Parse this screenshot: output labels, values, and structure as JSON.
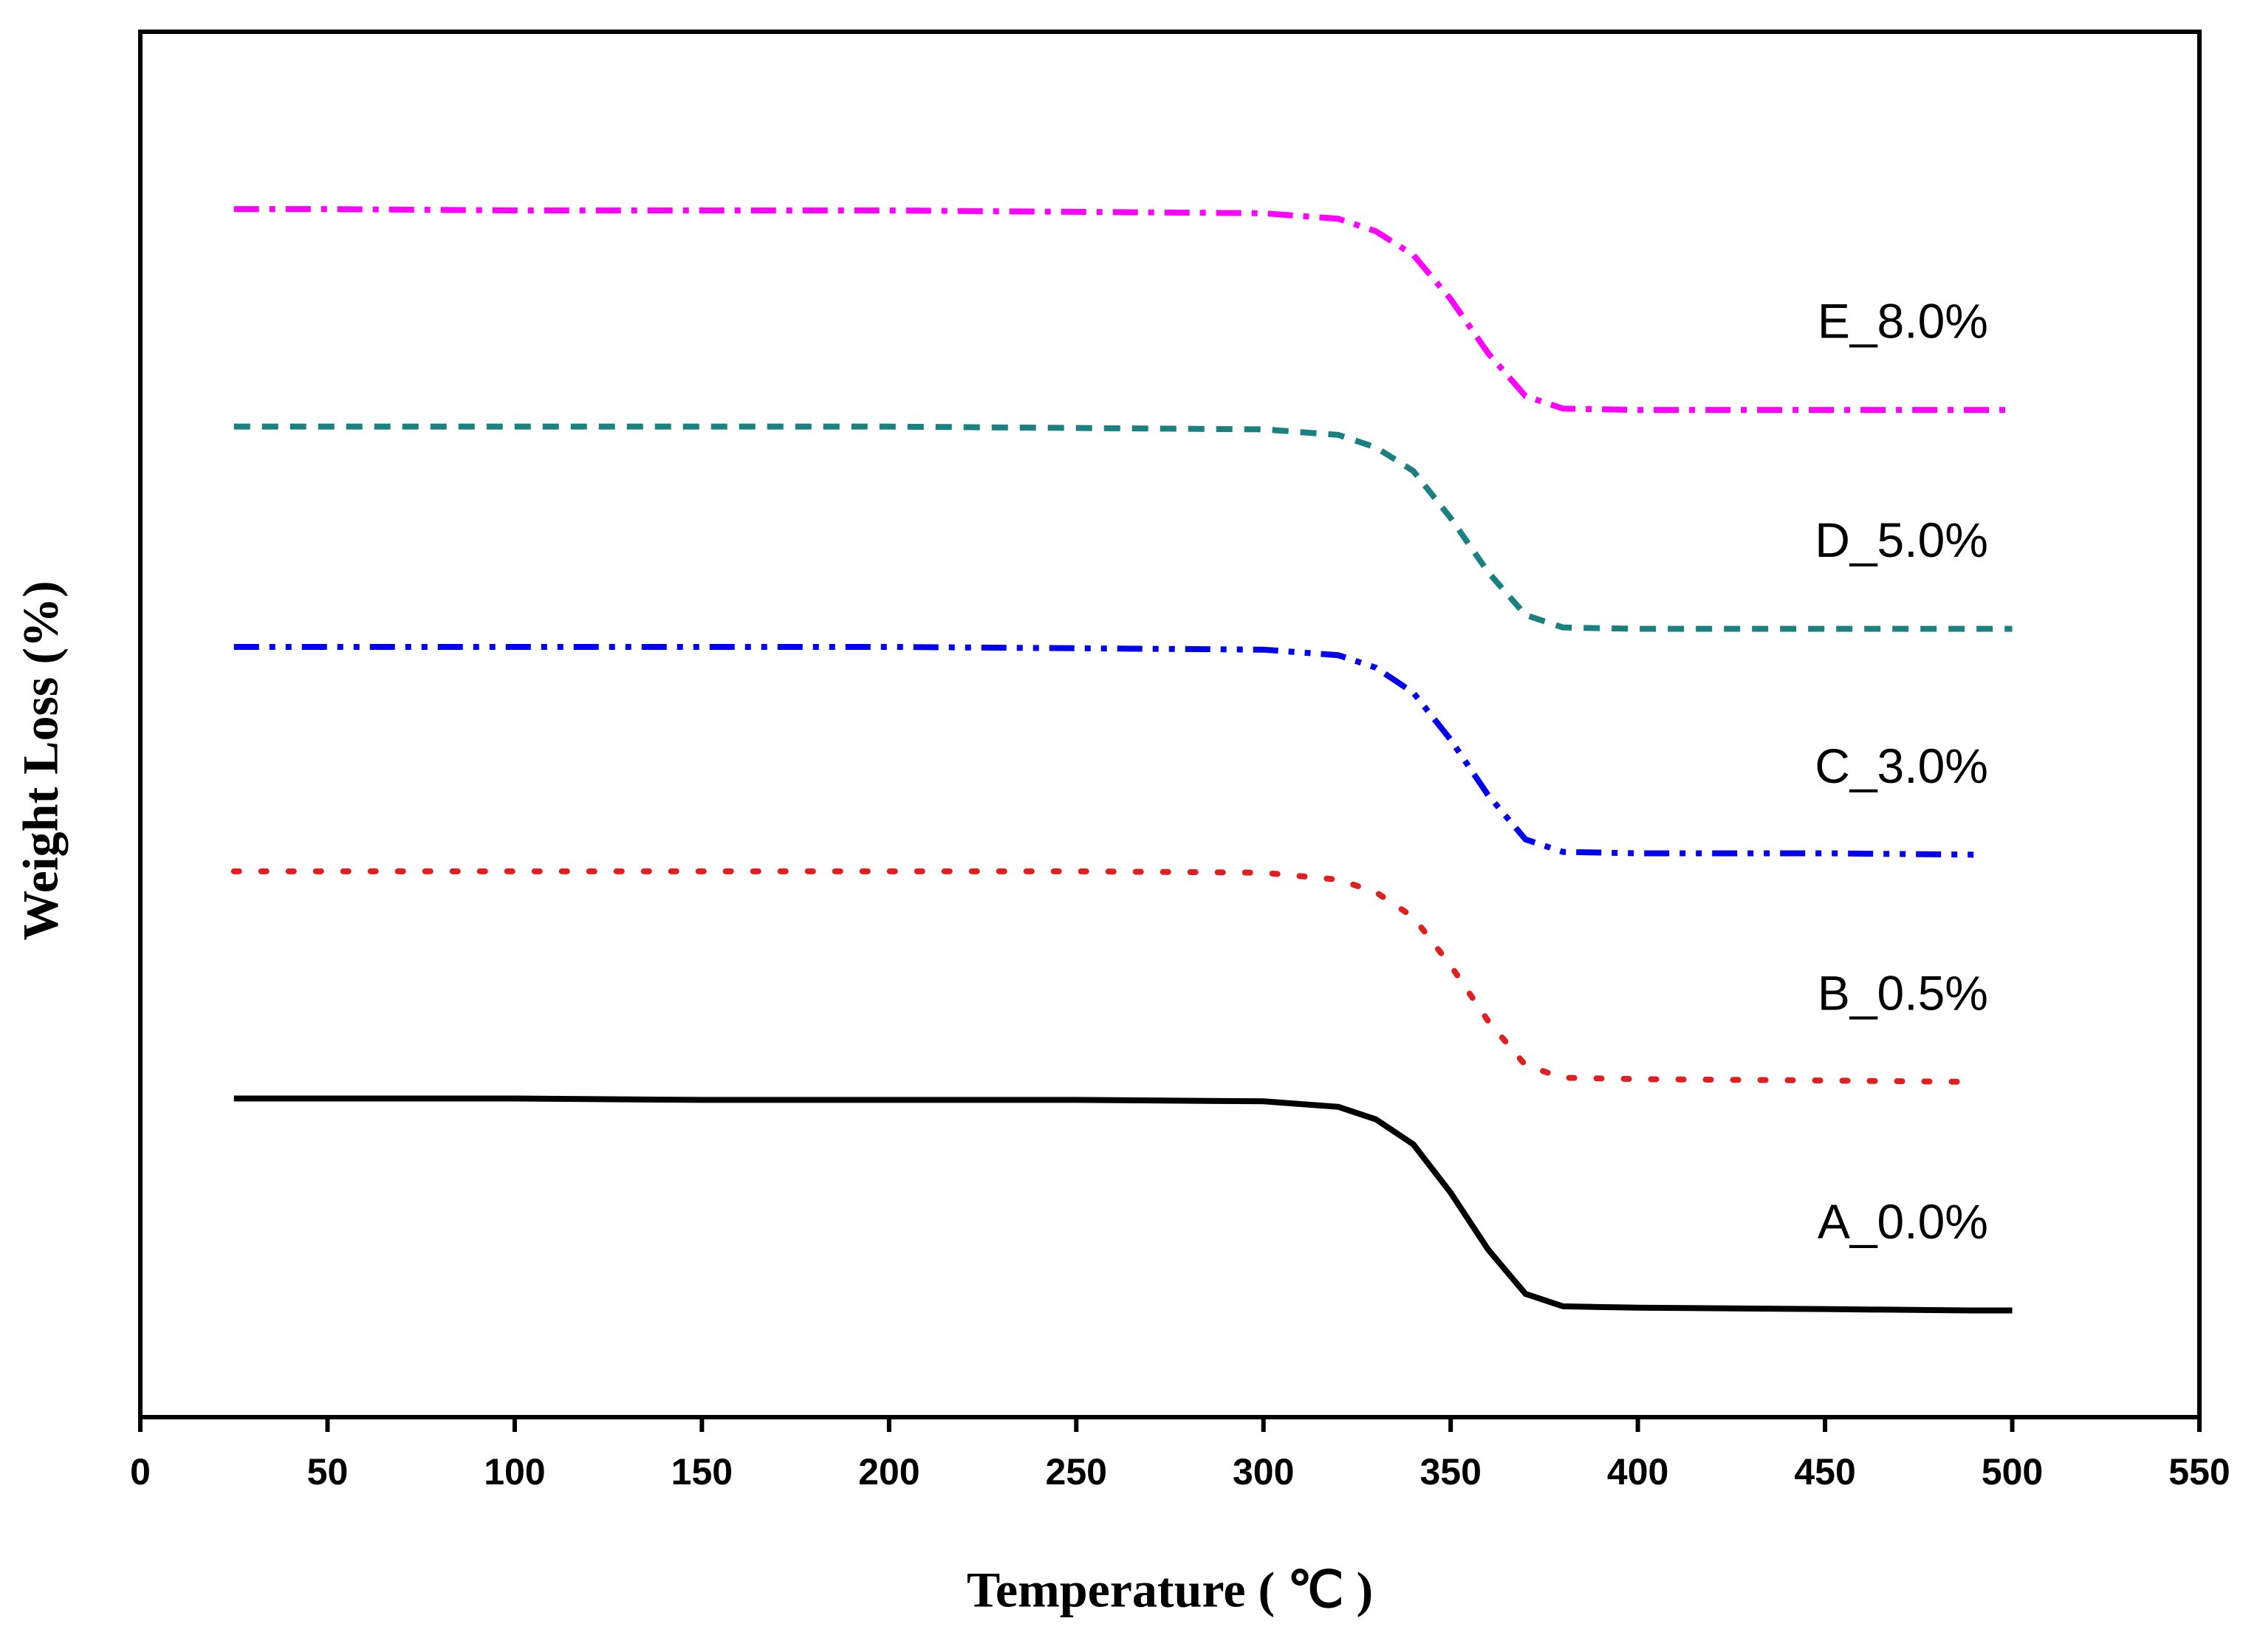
{
  "chart_data": {
    "type": "line",
    "xlabel": "Temperature (  ℃  )",
    "ylabel": "Weight Loss (%)",
    "x": [
      25,
      50,
      100,
      150,
      200,
      250,
      300,
      320,
      330,
      340,
      350,
      360,
      370,
      380,
      400,
      450,
      490,
      500
    ],
    "xlim": [
      0,
      550
    ],
    "xticks": [
      0,
      50,
      100,
      150,
      200,
      250,
      300,
      350,
      400,
      450,
      500,
      550
    ],
    "ylim": [
      0,
      100
    ],
    "series": [
      {
        "name": "A_0.0%",
        "color": "#000000",
        "dash": "solid",
        "values": [
          23.0,
          23.0,
          23.0,
          22.9,
          22.9,
          22.9,
          22.8,
          22.4,
          21.5,
          19.7,
          16.2,
          12.1,
          8.9,
          8.0,
          7.9,
          7.8,
          7.7,
          7.7
        ]
      },
      {
        "name": "B_0.5%",
        "color": "#e02020",
        "dash": "dot",
        "values": [
          39.4,
          39.4,
          39.4,
          39.4,
          39.4,
          39.4,
          39.3,
          38.8,
          37.9,
          36.1,
          32.6,
          28.6,
          25.4,
          24.5,
          24.4,
          24.3,
          24.2,
          null
        ]
      },
      {
        "name": "C_3.0%",
        "color": "#0000ee",
        "dash": "dashdotdot",
        "values": [
          55.6,
          55.6,
          55.6,
          55.6,
          55.6,
          55.5,
          55.4,
          55.0,
          54.1,
          52.3,
          48.9,
          44.9,
          41.7,
          40.8,
          40.7,
          40.7,
          40.6,
          null
        ]
      },
      {
        "name": "D_5.0%",
        "color": "#1a8080",
        "dash": "dash",
        "values": [
          71.5,
          71.5,
          71.5,
          71.5,
          71.5,
          71.4,
          71.3,
          70.9,
          70.0,
          68.3,
          64.9,
          61.0,
          57.9,
          57.0,
          56.9,
          56.9,
          56.9,
          56.9
        ]
      },
      {
        "name": "E_8.0%",
        "color": "#ff00ff",
        "dash": "dashdot",
        "values": [
          87.2,
          87.2,
          87.1,
          87.1,
          87.1,
          87.0,
          86.9,
          86.5,
          85.6,
          83.9,
          80.7,
          76.8,
          73.7,
          72.8,
          72.7,
          72.7,
          72.7,
          72.7
        ]
      }
    ]
  }
}
